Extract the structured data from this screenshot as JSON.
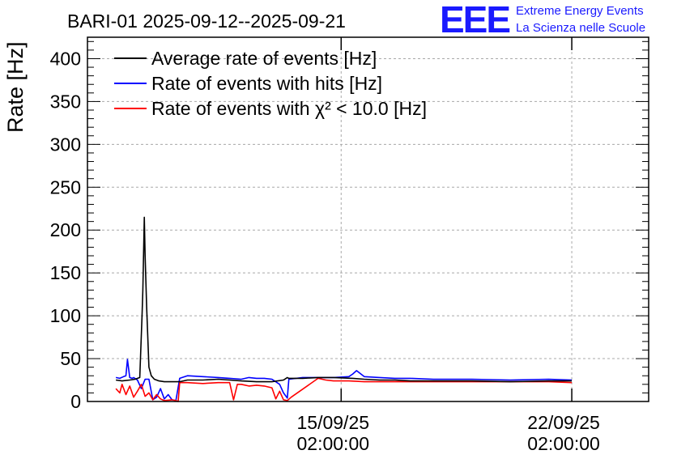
{
  "chart_data": {
    "type": "line",
    "title": "BARI-01 2025-09-12--2025-09-21",
    "ylabel": "Rate [Hz]",
    "xlabel": "",
    "ylim": [
      0,
      425
    ],
    "yticks": [
      0,
      50,
      100,
      150,
      200,
      250,
      300,
      350,
      400
    ],
    "xlim_days": [
      0,
      7.3
    ],
    "x_ticks": [
      {
        "day": 3.3,
        "date": "15/09/25",
        "time": "02:00:00"
      },
      {
        "day": 6.3,
        "date": "22/09/25",
        "time": "02:00:00"
      }
    ],
    "grid": true,
    "legend_position": "top-left",
    "x_unit": "days since start of axis",
    "series": [
      {
        "name": "Average rate of events [Hz]",
        "color": "#000000",
        "x": [
          0.37,
          0.45,
          0.55,
          0.62,
          0.68,
          0.71,
          0.72,
          0.74,
          0.75,
          0.77,
          0.8,
          0.83,
          0.87,
          0.93,
          1.0,
          1.1,
          1.2,
          1.3,
          1.5,
          1.7,
          1.85,
          2.0,
          2.2,
          2.4,
          2.55,
          2.6,
          2.62,
          2.8,
          3.0,
          3.2,
          3.45,
          3.6,
          3.8,
          4.0,
          4.2,
          4.5,
          5.0,
          5.5,
          6.0,
          6.3
        ],
        "values": [
          25,
          24,
          25,
          26,
          28,
          100,
          130,
          215,
          170,
          110,
          40,
          30,
          26,
          24,
          23,
          23,
          23,
          25,
          25,
          26,
          25,
          24,
          23,
          23,
          25,
          28,
          27,
          27,
          28,
          28,
          27,
          26,
          25,
          25,
          24,
          24,
          24,
          23,
          24,
          24
        ]
      },
      {
        "name": "Rate of events with hits [Hz]",
        "color": "#0000ff",
        "x": [
          0.37,
          0.42,
          0.47,
          0.5,
          0.52,
          0.55,
          0.58,
          0.6,
          0.65,
          0.7,
          0.75,
          0.8,
          0.85,
          0.9,
          0.95,
          1.0,
          1.05,
          1.1,
          1.15,
          1.2,
          1.3,
          1.5,
          1.7,
          1.85,
          2.0,
          2.1,
          2.2,
          2.3,
          2.4,
          2.5,
          2.55,
          2.6,
          2.62,
          2.8,
          3.0,
          3.2,
          3.4,
          3.45,
          3.5,
          3.6,
          3.8,
          4.0,
          4.2,
          4.5,
          5.0,
          5.5,
          6.0,
          6.3
        ],
        "values": [
          28,
          27,
          29,
          30,
          49,
          28,
          27,
          28,
          25,
          15,
          26,
          26,
          2,
          5,
          15,
          3,
          8,
          2,
          1,
          27,
          30,
          29,
          28,
          27,
          26,
          28,
          27,
          27,
          26,
          20,
          10,
          4,
          26,
          28,
          28,
          28,
          29,
          32,
          36,
          29,
          28,
          27,
          27,
          26,
          26,
          25,
          26,
          25
        ]
      },
      {
        "name": "Rate of events with χ² < 10.0 [Hz]",
        "color": "#ff0000",
        "x": [
          0.37,
          0.42,
          0.45,
          0.5,
          0.55,
          0.6,
          0.65,
          0.7,
          0.75,
          0.8,
          0.85,
          0.9,
          0.95,
          1.0,
          1.1,
          1.15,
          1.18,
          1.2,
          1.3,
          1.5,
          1.7,
          1.85,
          1.9,
          1.95,
          2.0,
          2.1,
          2.2,
          2.3,
          2.4,
          2.45,
          2.5,
          2.55,
          2.6,
          2.65,
          3.0,
          3.1,
          3.2,
          3.4,
          3.6,
          3.8,
          4.0,
          4.5,
          5.0,
          5.5,
          6.0,
          6.3
        ],
        "values": [
          15,
          10,
          20,
          8,
          18,
          5,
          12,
          20,
          6,
          10,
          2,
          8,
          3,
          1,
          2,
          1,
          0,
          22,
          22,
          21,
          22,
          22,
          2,
          20,
          20,
          18,
          19,
          18,
          16,
          3,
          12,
          2,
          1,
          5,
          27,
          25,
          24,
          24,
          23,
          23,
          23,
          23,
          23,
          23,
          23,
          22
        ]
      }
    ]
  },
  "logo": {
    "text": "EEE",
    "line1": "Extreme Energy Events",
    "line2": "La Scienza nelle Scuole"
  }
}
